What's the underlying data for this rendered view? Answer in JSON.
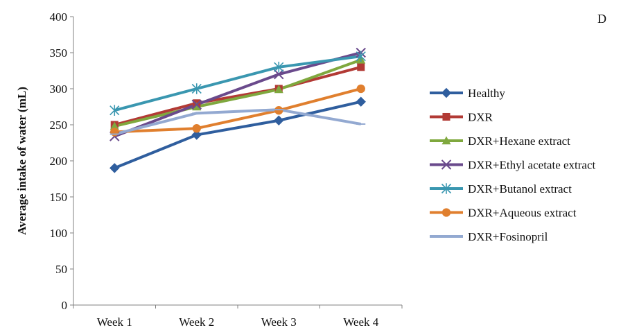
{
  "panel_label": "D",
  "chart_data": {
    "type": "line",
    "title": "",
    "xlabel": "",
    "ylabel": "Average intake of water (mL)",
    "categories": [
      "Week 1",
      "Week 2",
      "Week 3",
      "Week 4"
    ],
    "ylim": [
      0,
      400
    ],
    "yticks": [
      0,
      50,
      100,
      150,
      200,
      250,
      300,
      350,
      400
    ],
    "grid": false,
    "legend_position": "right",
    "series": [
      {
        "name": "Healthy",
        "values": [
          190,
          236,
          256,
          282
        ],
        "color": "#2F5E9E",
        "marker": "diamond"
      },
      {
        "name": "DXR",
        "values": [
          250,
          280,
          300,
          330
        ],
        "color": "#B23A35",
        "marker": "square"
      },
      {
        "name": "DXR+Hexane extract",
        "values": [
          248,
          275,
          299,
          340
        ],
        "color": "#7FA83E",
        "marker": "triangle"
      },
      {
        "name": "DXR+Ethyl acetate extract",
        "values": [
          234,
          278,
          320,
          350
        ],
        "color": "#6A4A8C",
        "marker": "x"
      },
      {
        "name": "DXR+Butanol extract",
        "values": [
          270,
          300,
          330,
          345
        ],
        "color": "#3A97B0",
        "marker": "asterisk"
      },
      {
        "name": "DXR+Aqueous extract",
        "values": [
          240,
          245,
          270,
          300
        ],
        "color": "#E07F2E",
        "marker": "circle"
      },
      {
        "name": "DXR+Fosinopril",
        "values": [
          237,
          266,
          271,
          251
        ],
        "color": "#93A9D1",
        "marker": "plus"
      }
    ]
  }
}
